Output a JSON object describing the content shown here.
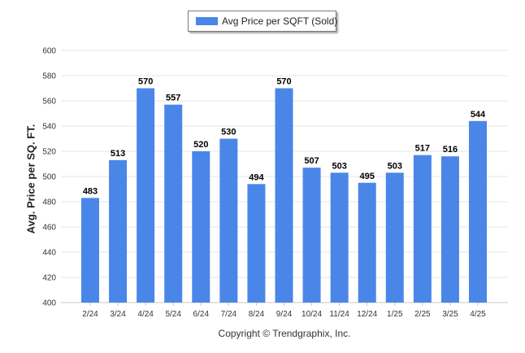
{
  "chart_data": {
    "type": "bar",
    "legend": {
      "label": "Avg Price per SQFT (Sold)",
      "placement": "top-center"
    },
    "ylabel": "Avg. Price per SQ. FT.",
    "xlabel": "",
    "ylim": [
      400,
      600
    ],
    "yticks": [
      400,
      420,
      440,
      460,
      480,
      500,
      520,
      540,
      560,
      580,
      600
    ],
    "grid": true,
    "categories": [
      "2/24",
      "3/24",
      "4/24",
      "5/24",
      "6/24",
      "7/24",
      "8/24",
      "9/24",
      "10/24",
      "11/24",
      "12/24",
      "1/25",
      "2/25",
      "3/25",
      "4/25"
    ],
    "values": [
      483,
      513,
      570,
      557,
      520,
      530,
      494,
      570,
      507,
      503,
      495,
      503,
      517,
      516,
      544
    ],
    "bar_color": "#4a86e8",
    "footer": "Copyright © Trendgraphix, Inc."
  }
}
